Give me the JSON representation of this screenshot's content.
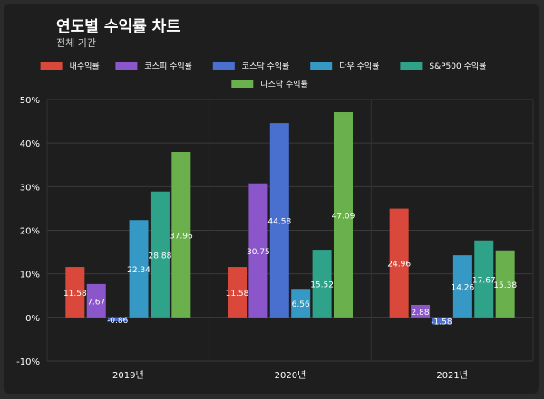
{
  "header": {
    "title": "연도별 수익률 차트",
    "subtitle": "전체 기간"
  },
  "chart_data": {
    "type": "bar",
    "title": "연도별 수익률 차트",
    "subtitle": "전체 기간",
    "categories": [
      "2019년",
      "2020년",
      "2021년"
    ],
    "series": [
      {
        "name": "내수익률",
        "color": "#d9483b",
        "values": [
          11.58,
          11.58,
          24.96
        ]
      },
      {
        "name": "코스피 수익률",
        "color": "#8a56c9",
        "values": [
          7.67,
          30.75,
          2.88
        ]
      },
      {
        "name": "코스닥 수익률",
        "color": "#4a70cf",
        "values": [
          -0.86,
          44.58,
          -1.58
        ]
      },
      {
        "name": "다우 수익률",
        "color": "#3598c5",
        "values": [
          22.34,
          6.56,
          14.26
        ]
      },
      {
        "name": "S&P500 수익률",
        "color": "#2ea38a",
        "values": [
          28.88,
          15.52,
          17.67
        ]
      },
      {
        "name": "나스닥 수익률",
        "color": "#6ab04c",
        "values": [
          37.96,
          47.09,
          15.38
        ]
      }
    ],
    "value_labels": [
      [
        "11.58",
        "11.58",
        "24.96"
      ],
      [
        "7.67",
        "30.75",
        "2.88"
      ],
      [
        "-0.86",
        "44.58",
        "-1.58"
      ],
      [
        "22.34",
        "6.56",
        "14.26"
      ],
      [
        "28.88",
        "15.52",
        "17.67"
      ],
      [
        "37.96",
        "47.09",
        "15.38"
      ]
    ],
    "y_ticks": [
      50,
      40,
      30,
      20,
      10,
      0,
      -10
    ],
    "y_tick_labels": [
      "50%",
      "40%",
      "30%",
      "20%",
      "10%",
      "0%",
      "-10%"
    ],
    "ylim": [
      -10,
      50
    ],
    "grid": true,
    "legend_position": "top"
  }
}
